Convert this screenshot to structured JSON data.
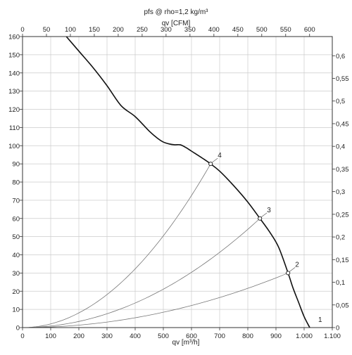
{
  "chart_data": {
    "type": "line",
    "title": "pfs @ rho=1,2 kg/m³",
    "xlabel": "qv [m³/h]",
    "xlabel_top": "qv [CFM]",
    "xlim": [
      0,
      1100
    ],
    "ylim": [
      0,
      160
    ],
    "x_ticks": [
      "0",
      "100",
      "200",
      "300",
      "400",
      "500",
      "600",
      "700",
      "800",
      "900",
      "1.000",
      "1.100"
    ],
    "y_ticks": [
      "0",
      "10",
      "20",
      "30",
      "40",
      "50",
      "60",
      "70",
      "80",
      "90",
      "100",
      "110",
      "120",
      "130",
      "140",
      "150",
      "160"
    ],
    "top_ticks": [
      "0",
      "50",
      "100",
      "150",
      "200",
      "250",
      "300",
      "350",
      "400",
      "450",
      "500",
      "550",
      "600"
    ],
    "right_ticks": [
      "0",
      "0,05",
      "0,1",
      "0,15",
      "0,2",
      "0,25",
      "0,3",
      "0,35",
      "0,4",
      "0,45",
      "0,5",
      "0,55",
      "0,6"
    ],
    "grid": true,
    "fan_curve": {
      "x": [
        150,
        200,
        250,
        300,
        350,
        400,
        450,
        480,
        500,
        520,
        540,
        560,
        580,
        600,
        640,
        668,
        700,
        750,
        800,
        843,
        880,
        910,
        943,
        960,
        980,
        1000,
        1020
      ],
      "y": [
        161,
        152,
        143,
        133,
        122,
        116,
        108,
        104,
        102,
        101,
        100.5,
        100.5,
        99,
        97,
        93,
        90,
        86,
        78,
        69,
        60,
        52,
        44,
        30,
        22,
        14,
        6,
        0
      ]
    },
    "system_curves": [
      {
        "label": "4",
        "x": 668,
        "y": 90
      },
      {
        "label": "3",
        "x": 843,
        "y": 60
      },
      {
        "label": "2",
        "x": 943,
        "y": 30
      },
      {
        "label": "1",
        "x": 1020,
        "y": 0
      }
    ],
    "colors": {
      "fan_curve": "#111111",
      "system_curve": "#777777",
      "grid": "#cccccc"
    }
  }
}
